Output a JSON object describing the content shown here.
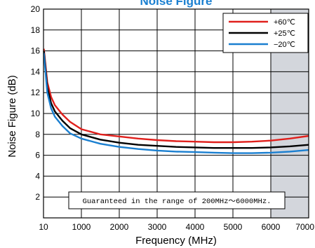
{
  "chart_data": {
    "type": "line",
    "title": "Noise Figure",
    "xlabel": "Frequency (MHz)",
    "ylabel": "Noise Figure (dB)",
    "xlim": [
      0,
      7000
    ],
    "ylim": [
      0,
      20
    ],
    "x_ticks": [
      {
        "value": 0,
        "label": "10"
      },
      {
        "value": 1000,
        "label": "1000"
      },
      {
        "value": 2000,
        "label": "2000"
      },
      {
        "value": 3000,
        "label": "3000"
      },
      {
        "value": 4000,
        "label": "4000"
      },
      {
        "value": 5000,
        "label": "5000"
      },
      {
        "value": 6000,
        "label": "6000"
      },
      {
        "value": 7000,
        "label": "7000"
      }
    ],
    "y_ticks": [
      {
        "value": 2,
        "label": "2"
      },
      {
        "value": 4,
        "label": "4"
      },
      {
        "value": 6,
        "label": "6"
      },
      {
        "value": 8,
        "label": "8"
      },
      {
        "value": 10,
        "label": "10"
      },
      {
        "value": 12,
        "label": "12"
      },
      {
        "value": 14,
        "label": "14"
      },
      {
        "value": 16,
        "label": "16"
      },
      {
        "value": 18,
        "label": "18"
      },
      {
        "value": 20,
        "label": "20"
      }
    ],
    "grid": true,
    "legend_position": "top-right",
    "shaded_region": {
      "x_from": 6000,
      "x_to": 7000,
      "color": "#d3d6dc"
    },
    "annotation": "Guaranteed in the range of 200MHz〜6000MHz.",
    "series": [
      {
        "name": "+60℃",
        "color": "#e0201c",
        "x": [
          10,
          100,
          200,
          300,
          500,
          700,
          1000,
          1500,
          2000,
          2500,
          3000,
          3500,
          4000,
          4500,
          5000,
          5500,
          6000,
          6500,
          7000
        ],
        "y": [
          16.2,
          13.0,
          11.6,
          10.8,
          9.9,
          9.2,
          8.5,
          8.0,
          7.8,
          7.6,
          7.45,
          7.35,
          7.3,
          7.25,
          7.25,
          7.3,
          7.4,
          7.6,
          7.85
        ]
      },
      {
        "name": "+25℃",
        "color": "#000000",
        "x": [
          10,
          100,
          200,
          300,
          500,
          700,
          1000,
          1500,
          2000,
          2500,
          3000,
          3500,
          4000,
          4500,
          5000,
          5500,
          6000,
          6500,
          7000
        ],
        "y": [
          16.0,
          12.5,
          11.0,
          10.2,
          9.3,
          8.6,
          8.0,
          7.5,
          7.2,
          7.0,
          6.9,
          6.8,
          6.75,
          6.7,
          6.7,
          6.7,
          6.75,
          6.85,
          7.0
        ]
      },
      {
        "name": "−20℃",
        "color": "#1a7fd0",
        "x": [
          10,
          100,
          200,
          300,
          500,
          700,
          1000,
          1500,
          2000,
          2500,
          3000,
          3500,
          4000,
          4500,
          5000,
          5500,
          6000,
          6500,
          7000
        ],
        "y": [
          15.8,
          12.0,
          10.5,
          9.7,
          8.8,
          8.1,
          7.6,
          7.1,
          6.8,
          6.6,
          6.45,
          6.35,
          6.3,
          6.25,
          6.2,
          6.2,
          6.25,
          6.35,
          6.5
        ]
      }
    ]
  }
}
